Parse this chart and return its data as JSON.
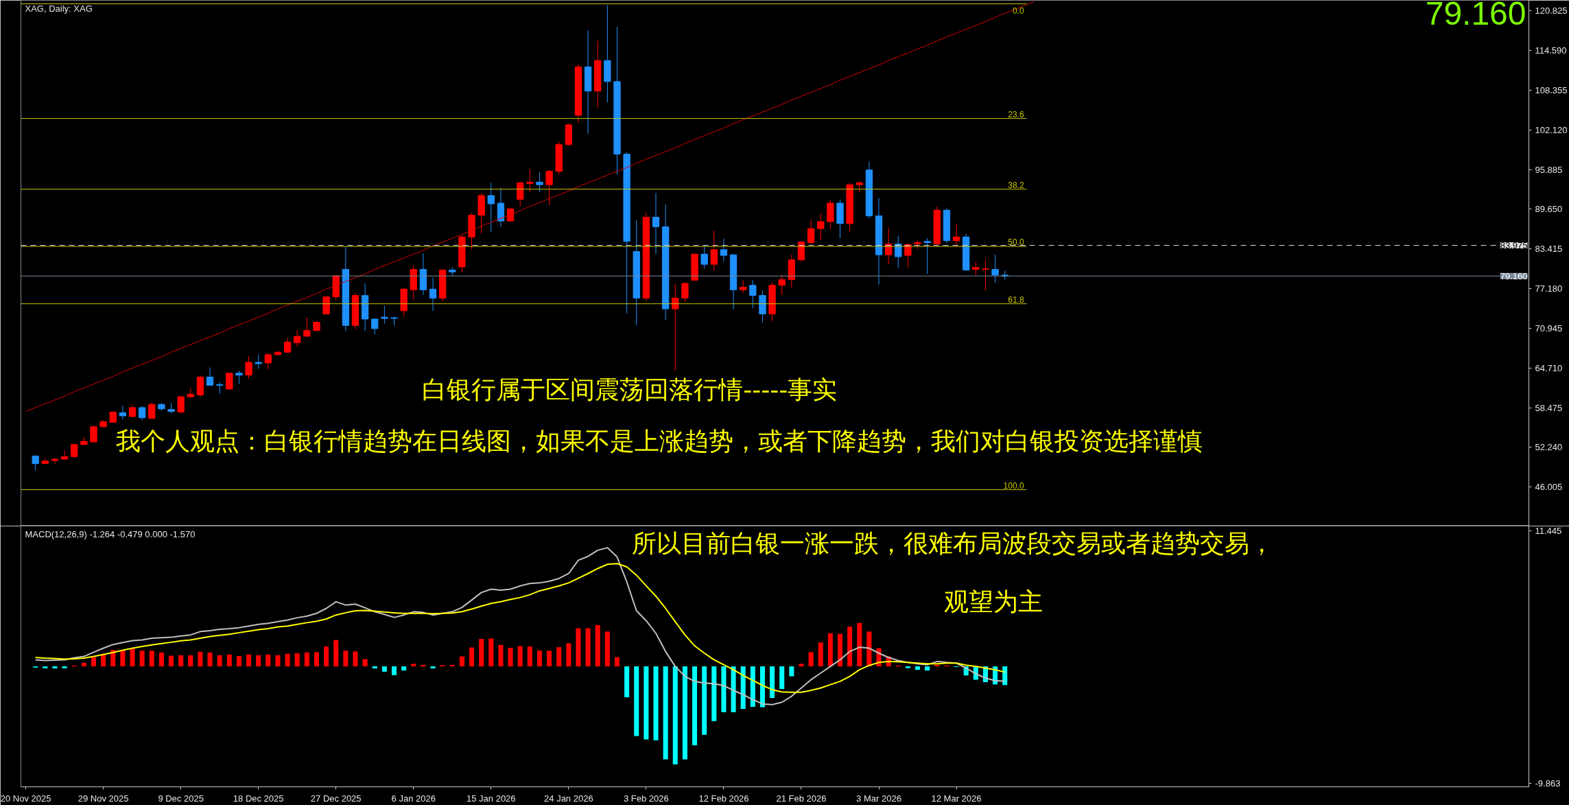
{
  "chart_data": [
    {
      "type": "candlestick",
      "title": "XAG, Daily: XAG",
      "categories": [
        null,
        null,
        null,
        null,
        null,
        null,
        null,
        null,
        null,
        null,
        null,
        null,
        null,
        null,
        null,
        null,
        null,
        null,
        null,
        null,
        null,
        null,
        null,
        null,
        null,
        null,
        null,
        null,
        null,
        null,
        null,
        null,
        null,
        null,
        null,
        null,
        null,
        null,
        null,
        null,
        null,
        null,
        null,
        null,
        null,
        null,
        null,
        null,
        null,
        null,
        null,
        null,
        null,
        null,
        null,
        null,
        null,
        null,
        null,
        null,
        null,
        null,
        null,
        null,
        null,
        null,
        null,
        null,
        null,
        null,
        null,
        null,
        null,
        null,
        null,
        null,
        null,
        null,
        null,
        null,
        null,
        null,
        null,
        null,
        null,
        null,
        null,
        null,
        null,
        null,
        null,
        null,
        null,
        null,
        null,
        null,
        null,
        null,
        null,
        null,
        null,
        null,
        null,
        null,
        null
      ],
      "ohlc": [
        null,
        [
          50.9,
          51.0,
          48.6,
          49.7
        ],
        [
          49.7,
          50.5,
          49.6,
          50.1
        ],
        [
          50.2,
          50.6,
          49.7,
          50.4
        ],
        [
          50.4,
          51.8,
          50.3,
          50.8
        ],
        [
          50.8,
          52.8,
          50.6,
          52.7
        ],
        [
          52.7,
          53.9,
          52.6,
          53.2
        ],
        [
          53.1,
          55.6,
          53.1,
          55.5
        ],
        [
          55.5,
          56.5,
          55.4,
          56.3
        ],
        [
          56.2,
          57.9,
          56.1,
          57.8
        ],
        [
          57.7,
          58.8,
          56.6,
          57.2
        ],
        [
          57.1,
          59.0,
          57.0,
          58.5
        ],
        [
          58.5,
          58.7,
          56.5,
          56.9
        ],
        [
          56.8,
          59.3,
          56.7,
          59.0
        ],
        [
          59.0,
          59.2,
          58.0,
          58.3
        ],
        [
          58.2,
          59.2,
          57.6,
          57.9
        ],
        [
          57.8,
          60.3,
          57.6,
          60.2
        ],
        [
          60.2,
          61.6,
          60.0,
          60.6
        ],
        [
          60.5,
          63.6,
          60.2,
          63.3
        ],
        [
          63.3,
          64.8,
          61.9,
          62.0
        ],
        [
          62.1,
          62.5,
          60.7,
          62.0
        ],
        [
          61.4,
          64.0,
          61.3,
          63.9
        ],
        [
          63.9,
          64.3,
          62.2,
          63.6
        ],
        [
          63.6,
          66.6,
          63.0,
          65.6
        ],
        [
          65.6,
          66.8,
          64.6,
          65.4
        ],
        [
          65.5,
          67.0,
          64.5,
          66.8
        ],
        [
          66.8,
          67.4,
          66.7,
          67.2
        ],
        [
          67.2,
          69.5,
          67.1,
          68.8
        ],
        [
          68.7,
          70.7,
          68.0,
          69.7
        ],
        [
          69.7,
          72.6,
          69.6,
          70.6
        ],
        [
          70.6,
          72.1,
          70.5,
          71.9
        ],
        [
          73.2,
          76.0,
          73.1,
          75.9
        ],
        [
          75.9,
          79.3,
          75.4,
          79.2
        ],
        [
          80.2,
          83.7,
          70.5,
          71.4
        ],
        [
          71.4,
          76.5,
          70.8,
          76.1
        ],
        [
          76.1,
          78.0,
          70.5,
          72.4
        ],
        [
          72.4,
          72.5,
          70.0,
          70.9
        ],
        [
          72.7,
          74.5,
          71.7,
          72.5
        ],
        [
          72.6,
          72.8,
          71.4,
          72.5
        ],
        [
          73.7,
          77.3,
          72.8,
          77.1
        ],
        [
          77.0,
          80.8,
          75.4,
          80.2
        ],
        [
          80.2,
          82.7,
          76.2,
          77.0
        ],
        [
          77.1,
          78.9,
          73.7,
          75.7
        ],
        [
          75.7,
          80.2,
          75.2,
          80.1
        ],
        [
          80.1,
          80.5,
          79.2,
          79.8
        ],
        [
          80.6,
          85.6,
          79.7,
          85.3
        ],
        [
          85.3,
          89.1,
          83.4,
          88.7
        ],
        [
          88.7,
          92.2,
          85.8,
          91.8
        ],
        [
          91.8,
          93.8,
          86.1,
          90.5
        ],
        [
          90.6,
          93.0,
          86.9,
          87.8
        ],
        [
          87.8,
          89.9,
          87.7,
          89.7
        ],
        [
          91.2,
          94.0,
          90.1,
          93.8
        ],
        [
          93.7,
          95.9,
          92.4,
          93.9
        ],
        [
          93.9,
          95.5,
          92.3,
          93.5
        ],
        [
          93.5,
          95.9,
          90.3,
          95.6
        ],
        [
          95.6,
          100.3,
          95.1,
          99.8
        ],
        [
          99.8,
          103.1,
          99.6,
          102.9
        ],
        [
          104.4,
          112.4,
          103.2,
          112.0
        ],
        [
          112.0,
          117.7,
          101.5,
          108.2
        ],
        [
          108.2,
          116.1,
          105.6,
          113.0
        ],
        [
          113.0,
          121.7,
          106.4,
          109.7
        ],
        [
          109.7,
          118.3,
          95.1,
          98.3
        ],
        [
          98.3,
          98.6,
          73.3,
          84.6
        ],
        [
          83.0,
          87.9,
          71.4,
          75.7
        ],
        [
          75.7,
          89.1,
          75.2,
          88.4
        ],
        [
          88.4,
          92.2,
          82.6,
          86.9
        ],
        [
          86.9,
          90.4,
          72.3,
          74.0
        ],
        [
          74.0,
          77.9,
          64.3,
          75.7
        ],
        [
          75.7,
          78.2,
          75.1,
          78.0
        ],
        [
          78.5,
          82.7,
          78.4,
          82.6
        ],
        [
          82.6,
          83.9,
          80.3,
          81.0
        ],
        [
          81.0,
          86.3,
          80.0,
          83.3
        ],
        [
          83.3,
          85.0,
          81.4,
          82.4
        ],
        [
          82.5,
          82.6,
          73.9,
          77.0
        ],
        [
          77.0,
          78.5,
          76.5,
          77.4
        ],
        [
          77.7,
          78.5,
          74.1,
          76.1
        ],
        [
          76.1,
          76.9,
          71.9,
          73.2
        ],
        [
          73.2,
          78.2,
          72.1,
          77.7
        ],
        [
          77.7,
          79.4,
          76.2,
          78.6
        ],
        [
          78.6,
          82.5,
          77.3,
          81.7
        ],
        [
          81.7,
          84.6,
          81.4,
          84.5
        ],
        [
          84.4,
          88.0,
          84.2,
          86.6
        ],
        [
          86.6,
          89.0,
          84.8,
          87.7
        ],
        [
          87.7,
          91.1,
          86.5,
          90.6
        ],
        [
          90.6,
          91.2,
          85.1,
          87.4
        ],
        [
          87.4,
          93.8,
          86.2,
          93.5
        ],
        [
          93.5,
          94.0,
          92.3,
          93.8
        ],
        [
          95.8,
          97.1,
          88.2,
          88.6
        ],
        [
          88.6,
          91.4,
          77.8,
          82.5
        ],
        [
          82.5,
          86.8,
          81.0,
          84.2
        ],
        [
          84.2,
          85.5,
          80.4,
          82.2
        ],
        [
          82.4,
          84.3,
          80.5,
          84.1
        ],
        [
          84.2,
          84.8,
          83.4,
          84.4
        ],
        [
          84.6,
          85.1,
          79.5,
          84.4
        ],
        [
          84.2,
          90.1,
          84.1,
          89.5
        ],
        [
          89.5,
          89.8,
          84.3,
          84.7
        ],
        [
          84.7,
          87.4,
          83.7,
          85.3
        ],
        [
          85.3,
          85.8,
          80.0,
          80.1
        ],
        [
          80.2,
          81.4,
          79.3,
          80.5
        ],
        [
          80.2,
          81.7,
          76.9,
          80.3
        ],
        [
          80.2,
          82.5,
          78.1,
          79.3
        ],
        [
          79.3,
          80.0,
          78.6,
          79.16
        ],
        null,
        null,
        null
      ],
      "colors": [
        null,
        "#1e90ff",
        "#ff0000",
        "#ff0000",
        "#ff0000",
        "#ff0000",
        "#ff0000",
        "#ff0000",
        "#ff0000",
        "#ff0000",
        "#1e90ff",
        "#ff0000",
        "#1e90ff",
        "#ff0000",
        "#1e90ff",
        "#1e90ff",
        "#ff0000",
        "#ff0000",
        "#ff0000",
        "#1e90ff",
        "#1e90ff",
        "#ff0000",
        "#1e90ff",
        "#ff0000",
        "#1e90ff",
        "#ff0000",
        "#ff0000",
        "#ff0000",
        "#ff0000",
        "#ff0000",
        "#ff0000",
        "#ff0000",
        "#ff0000",
        "#1e90ff",
        "#ff0000",
        "#1e90ff",
        "#1e90ff",
        "#1e90ff",
        "#1e90ff",
        "#ff0000",
        "#ff0000",
        "#1e90ff",
        "#1e90ff",
        "#ff0000",
        "#1e90ff",
        "#ff0000",
        "#ff0000",
        "#ff0000",
        "#1e90ff",
        "#1e90ff",
        "#ff0000",
        "#ff0000",
        "#ff0000",
        "#1e90ff",
        "#ff0000",
        "#ff0000",
        "#ff0000",
        "#ff0000",
        "#1e90ff",
        "#ff0000",
        "#1e90ff",
        "#1e90ff",
        "#1e90ff",
        "#1e90ff",
        "#ff0000",
        "#1e90ff",
        "#1e90ff",
        "#ff0000",
        "#ff0000",
        "#ff0000",
        "#1e90ff",
        "#ff0000",
        "#1e90ff",
        "#1e90ff",
        "#ff0000",
        "#1e90ff",
        "#1e90ff",
        "#ff0000",
        "#ff0000",
        "#ff0000",
        "#ff0000",
        "#ff0000",
        "#ff0000",
        "#ff0000",
        "#1e90ff",
        "#ff0000",
        "#ff0000",
        "#1e90ff",
        "#1e90ff",
        "#ff0000",
        "#1e90ff",
        "#ff0000",
        "#ff0000",
        "#1e90ff",
        "#ff0000",
        "#1e90ff",
        "#ff0000",
        "#1e90ff",
        "#ff0000",
        "#ff0000",
        "#1e90ff",
        "#1e90ff",
        null,
        null,
        null
      ],
      "series": [
        {
          "type": "line",
          "color": "#d40000",
          "values": [
            57.9,
            58.5,
            59.1,
            59.7,
            60.3,
            61.0,
            61.6,
            62.2,
            62.8,
            63.4,
            64.1,
            64.7,
            65.3,
            65.9,
            66.5,
            67.2,
            67.8,
            68.4,
            69.0,
            69.6,
            70.2,
            70.9,
            71.5,
            72.1,
            72.7,
            73.3,
            74.0,
            74.6,
            75.2,
            75.8,
            76.4,
            77.1,
            77.7,
            78.3,
            78.9,
            79.5,
            80.2,
            80.8,
            81.4,
            82.0,
            82.6,
            83.2,
            83.9,
            84.5,
            85.1,
            85.7,
            86.3,
            87.0,
            87.6,
            88.2,
            88.8,
            89.4,
            90.1,
            90.7,
            91.3,
            91.9,
            92.5,
            93.2,
            93.8,
            94.4,
            95.0,
            95.6,
            96.2,
            96.9,
            97.5,
            98.1,
            98.7,
            99.3,
            100.0,
            100.6,
            101.2,
            101.8,
            102.4,
            103.1,
            103.7,
            104.3,
            104.9,
            105.5,
            106.1,
            106.8,
            107.4,
            108.0,
            108.6,
            109.2,
            109.9,
            110.5,
            111.1,
            111.7,
            112.3,
            113.0,
            113.6,
            114.2,
            114.8,
            115.4,
            116.1,
            116.7,
            117.3,
            117.9,
            118.5,
            119.1,
            119.8,
            120.4,
            121.0,
            121.6,
            122.2
          ]
        }
      ],
      "ylim": [
        39.9,
        122.45
      ],
      "yticks": [
        120.825,
        {
          "value": 114.59,
          "label": "114.590"
        },
        108.355,
        {
          "value": 102.12,
          "label": "102.120"
        },
        95.885,
        {
          "value": 89.65,
          "label": "89.650"
        },
        83.415,
        {
          "value": 77.18,
          "label": "77.180"
        },
        70.945,
        {
          "value": 64.71,
          "label": "64.710"
        },
        58.475,
        {
          "value": 52.24,
          "label": "52.240"
        },
        46.005
      ],
      "tick_labels": "y",
      "ref_lines": [
        {
          "axis": "y",
          "value": 79.16,
          "label": "79.160",
          "color": "#778899"
        },
        {
          "axis": "y",
          "value": 83.975,
          "label": "83.975",
          "color": "#e0e0e0",
          "line_style": "dashed"
        },
        {
          "axis": "y",
          "value": 121.9,
          "color": "#c8c800"
        },
        {
          "axis": "y",
          "value": 103.9,
          "color": "#c8c800"
        },
        {
          "axis": "y",
          "value": 92.8,
          "color": "#c8c800"
        },
        {
          "axis": "y",
          "value": 83.8,
          "color": "#c8c800"
        },
        {
          "axis": "y",
          "value": 74.8,
          "color": "#c8c800"
        },
        {
          "axis": "y",
          "value": 45.6,
          "color": "#c8c800"
        }
      ],
      "annotations": [
        "79.160",
        "白银行属于区间震荡回落行情-----事实",
        "我个人观点：白银行情趋势在日线图，如果不是上涨趋势，或者下降趋势，我们对白银投资选择谨慎",
        {
          "text": "0.0",
          "y": 121.9
        },
        {
          "text": "23.6",
          "y": 103.9
        },
        {
          "text": "38.2",
          "y": 92.8
        },
        {
          "text": "50.0",
          "y": 83.8
        },
        {
          "text": "61.8",
          "y": 74.8
        },
        {
          "text": "100.0",
          "y": 45.6
        }
      ]
    },
    {
      "type": "bar",
      "title": "MACD(12,26,9) -1.264 -0.479 0.000 -1.570",
      "categories": [
        "20 Nov 2025",
        null,
        null,
        null,
        null,
        null,
        null,
        null,
        "29 Nov 2025",
        null,
        null,
        null,
        null,
        null,
        null,
        null,
        "9 Dec 2025",
        null,
        null,
        null,
        null,
        null,
        null,
        null,
        "18 Dec 2025",
        null,
        null,
        null,
        null,
        null,
        null,
        null,
        "27 Dec 2025",
        null,
        null,
        null,
        null,
        null,
        null,
        null,
        "6 Jan 2026",
        null,
        null,
        null,
        null,
        null,
        null,
        null,
        "15 Jan 2026",
        null,
        null,
        null,
        null,
        null,
        null,
        null,
        "24 Jan 2026",
        null,
        null,
        null,
        null,
        null,
        null,
        null,
        "3 Feb 2026",
        null,
        null,
        null,
        null,
        null,
        null,
        null,
        "12 Feb 2026",
        null,
        null,
        null,
        null,
        null,
        null,
        null,
        "21 Feb 2026",
        null,
        null,
        null,
        null,
        null,
        null,
        null,
        "3 Mar 2026",
        null,
        null,
        null,
        null,
        null,
        null,
        null,
        "12 Mar 2026",
        null,
        null,
        null,
        null,
        null,
        null,
        null,
        null
      ],
      "series": [
        {
          "type": "bar",
          "values": [
            null,
            -0.1,
            -0.15,
            -0.17,
            -0.15,
            0.08,
            0.31,
            0.78,
            1.06,
            1.4,
            1.4,
            1.54,
            1.32,
            1.32,
            1.18,
            0.9,
            0.95,
            0.95,
            1.23,
            1.18,
            0.95,
            1.01,
            0.87,
            1.01,
            0.95,
            1.01,
            0.95,
            1.06,
            1.12,
            1.18,
            1.2,
            1.68,
            2.24,
            1.32,
            1.26,
            0.62,
            -0.17,
            -0.45,
            -0.73,
            -0.34,
            0.22,
            0.14,
            -0.17,
            0.11,
            0.14,
            0.84,
            1.6,
            2.32,
            2.35,
            1.82,
            1.57,
            1.71,
            1.68,
            1.34,
            1.32,
            1.62,
            1.96,
            3.22,
            3.22,
            3.5,
            2.94,
            0.78,
            -2.6,
            -5.88,
            -6.16,
            -6.24,
            -7.84,
            -8.26,
            -7.84,
            -6.66,
            -5.77,
            -4.62,
            -3.86,
            -3.86,
            -3.58,
            -3.41,
            -3.44,
            -2.66,
            -1.9,
            -0.84,
            0.22,
            1.2,
            2.02,
            2.8,
            2.74,
            3.36,
            3.67,
            2.94,
            1.54,
            0.84,
            0.08,
            -0.14,
            -0.28,
            -0.34,
            0.14,
            0.08,
            -0.05,
            -0.76,
            -1.12,
            -1.32,
            -1.51,
            -1.57,
            null,
            null,
            null
          ],
          "colors": [
            null,
            "#00ffff",
            "#00ffff",
            "#00ffff",
            "#00ffff",
            "#ff0000",
            "#ff0000",
            "#ff0000",
            "#ff0000",
            "#ff0000",
            "#ff0000",
            "#ff0000",
            "#ff0000",
            "#ff0000",
            "#ff0000",
            "#ff0000",
            "#ff0000",
            "#ff0000",
            "#ff0000",
            "#ff0000",
            "#ff0000",
            "#ff0000",
            "#ff0000",
            "#ff0000",
            "#ff0000",
            "#ff0000",
            "#ff0000",
            "#ff0000",
            "#ff0000",
            "#ff0000",
            "#ff0000",
            "#ff0000",
            "#ff0000",
            "#ff0000",
            "#ff0000",
            "#ff0000",
            "#00ffff",
            "#00ffff",
            "#00ffff",
            "#00ffff",
            "#ff0000",
            "#ff0000",
            "#00ffff",
            "#ff0000",
            "#ff0000",
            "#ff0000",
            "#ff0000",
            "#ff0000",
            "#ff0000",
            "#ff0000",
            "#ff0000",
            "#ff0000",
            "#ff0000",
            "#ff0000",
            "#ff0000",
            "#ff0000",
            "#ff0000",
            "#ff0000",
            "#ff0000",
            "#ff0000",
            "#ff0000",
            "#ff0000",
            "#00ffff",
            "#00ffff",
            "#00ffff",
            "#00ffff",
            "#00ffff",
            "#00ffff",
            "#00ffff",
            "#00ffff",
            "#00ffff",
            "#00ffff",
            "#00ffff",
            "#00ffff",
            "#00ffff",
            "#00ffff",
            "#00ffff",
            "#00ffff",
            "#00ffff",
            "#00ffff",
            "#ff0000",
            "#ff0000",
            "#ff0000",
            "#ff0000",
            "#ff0000",
            "#ff0000",
            "#ff0000",
            "#ff0000",
            "#ff0000",
            "#ff0000",
            "#ff0000",
            "#00ffff",
            "#00ffff",
            "#00ffff",
            "#ff0000",
            "#ff0000",
            "#00ffff",
            "#00ffff",
            "#00ffff",
            "#00ffff",
            "#00ffff",
            "#00ffff",
            null,
            null,
            null
          ]
        },
        {
          "type": "line",
          "color": "#c0c0c0",
          "values": [
            null,
            0.56,
            0.5,
            0.53,
            0.56,
            0.73,
            0.84,
            1.2,
            1.54,
            1.85,
            2.02,
            2.18,
            2.24,
            2.38,
            2.43,
            2.46,
            2.57,
            2.66,
            2.94,
            3.02,
            3.13,
            3.19,
            3.27,
            3.41,
            3.55,
            3.64,
            3.78,
            3.92,
            4.11,
            4.25,
            4.48,
            4.9,
            5.46,
            5.18,
            5.26,
            4.95,
            4.62,
            4.39,
            4.14,
            4.34,
            4.62,
            4.56,
            4.34,
            4.48,
            4.62,
            4.98,
            5.6,
            6.24,
            6.52,
            6.44,
            6.52,
            6.8,
            7.0,
            7.05,
            7.19,
            7.42,
            7.84,
            8.96,
            9.29,
            9.8,
            10.02,
            9.24,
            7.14,
            4.7,
            3.86,
            2.8,
            1.26,
            0.0,
            -0.84,
            -1.26,
            -1.4,
            -1.46,
            -1.62,
            -2.02,
            -2.38,
            -2.8,
            -3.16,
            -3.22,
            -3.02,
            -2.52,
            -1.82,
            -1.12,
            -0.56,
            0.0,
            0.56,
            1.26,
            1.62,
            1.54,
            1.12,
            0.76,
            0.5,
            0.34,
            0.22,
            0.14,
            0.42,
            0.34,
            0.28,
            -0.14,
            -0.62,
            -0.98,
            -1.2,
            -1.26,
            null,
            null,
            null
          ]
        },
        {
          "type": "line",
          "color": "#ffff00",
          "values": [
            null,
            0.76,
            0.7,
            0.67,
            0.62,
            0.64,
            0.7,
            0.84,
            1.01,
            1.18,
            1.37,
            1.54,
            1.68,
            1.82,
            1.93,
            2.04,
            2.16,
            2.24,
            2.38,
            2.52,
            2.63,
            2.71,
            2.85,
            2.97,
            3.11,
            3.19,
            3.33,
            3.41,
            3.55,
            3.69,
            3.81,
            4.0,
            4.34,
            4.53,
            4.7,
            4.73,
            4.67,
            4.59,
            4.53,
            4.48,
            4.48,
            4.48,
            4.45,
            4.48,
            4.51,
            4.62,
            4.84,
            5.09,
            5.32,
            5.46,
            5.65,
            5.82,
            6.05,
            6.38,
            6.58,
            6.8,
            7.05,
            7.44,
            7.84,
            8.26,
            8.62,
            8.68,
            8.4,
            7.7,
            6.8,
            5.93,
            4.9,
            3.78,
            2.66,
            1.74,
            1.12,
            0.56,
            0.14,
            -0.28,
            -0.76,
            -1.18,
            -1.6,
            -1.96,
            -2.15,
            -2.18,
            -2.18,
            -2.02,
            -1.82,
            -1.54,
            -1.26,
            -0.84,
            -0.28,
            0.08,
            0.34,
            0.42,
            0.39,
            0.34,
            0.28,
            0.22,
            0.22,
            0.28,
            0.28,
            0.11,
            0.0,
            -0.14,
            -0.28,
            -0.48,
            null,
            null,
            null
          ]
        }
      ],
      "ylim": [
        -10.16,
        11.85
      ],
      "yticks": [
        11.445,
        -9.863
      ],
      "annotations": [
        "所以目前白银一涨一跌，很难布局波段交易或者趋势交易，",
        "观望为主"
      ]
    }
  ]
}
